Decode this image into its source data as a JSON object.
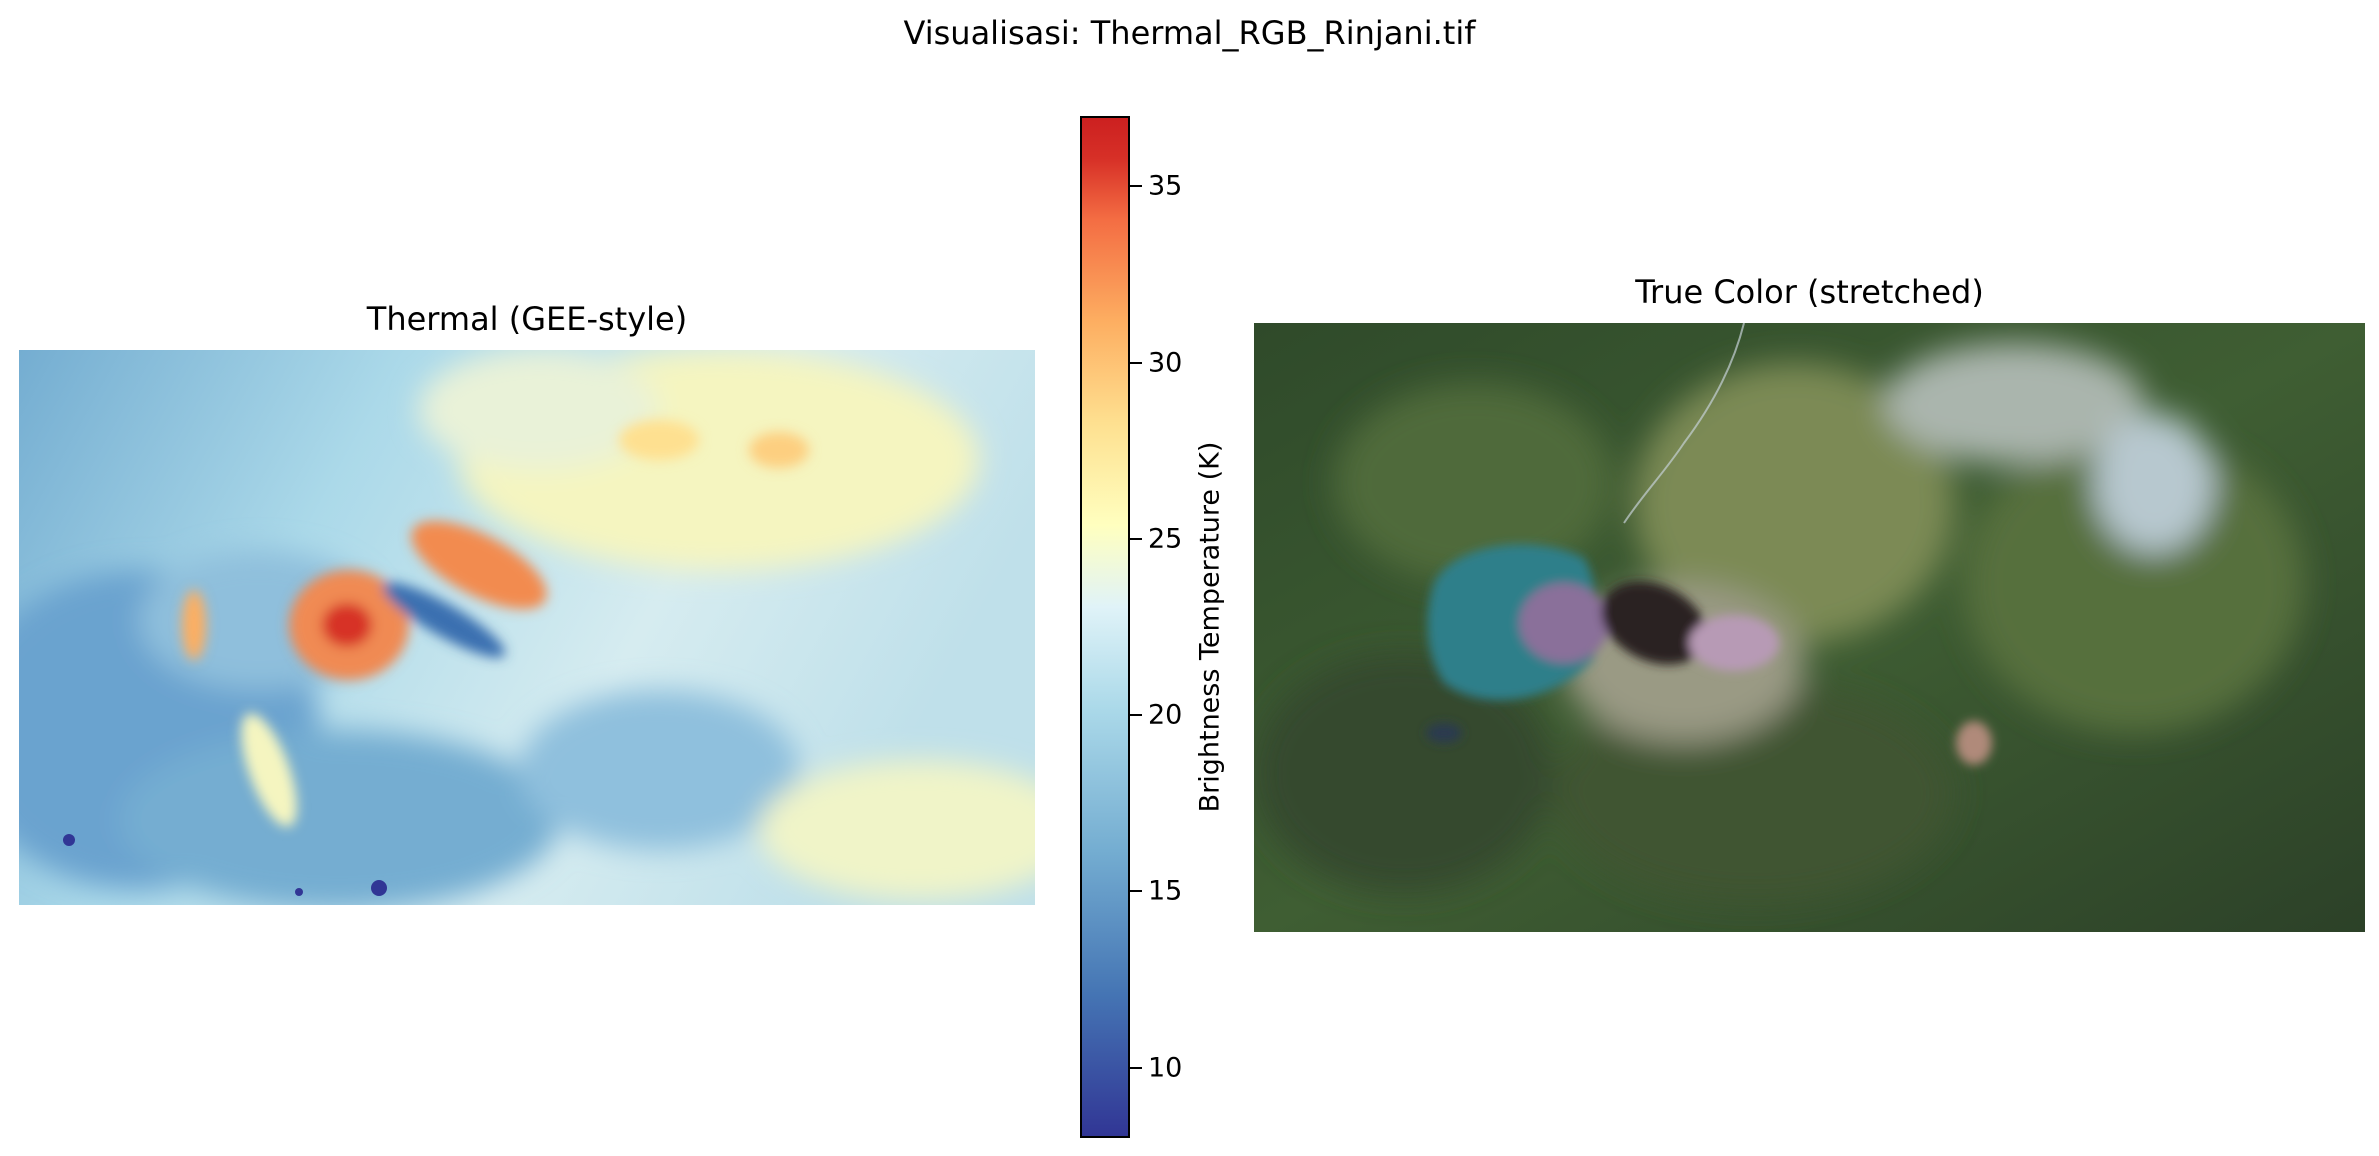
{
  "figure": {
    "title": "Visualisasi: Thermal_RGB_Rinjani.tif"
  },
  "panels": {
    "thermal": {
      "title": "Thermal (GEE-style)",
      "colormap": "RdYlBu_r"
    },
    "true_color": {
      "title": "True Color (stretched)"
    }
  },
  "colorbar": {
    "label": "Brightness Temperature (K)",
    "range": [
      8,
      37
    ],
    "ticks": [
      10,
      15,
      20,
      25,
      30,
      35
    ],
    "colors": [
      "#313695",
      "#4575b4",
      "#74add1",
      "#abd9e9",
      "#e0f3f8",
      "#ffffbf",
      "#fee090",
      "#fdae61",
      "#f46d43",
      "#d73027"
    ]
  }
}
